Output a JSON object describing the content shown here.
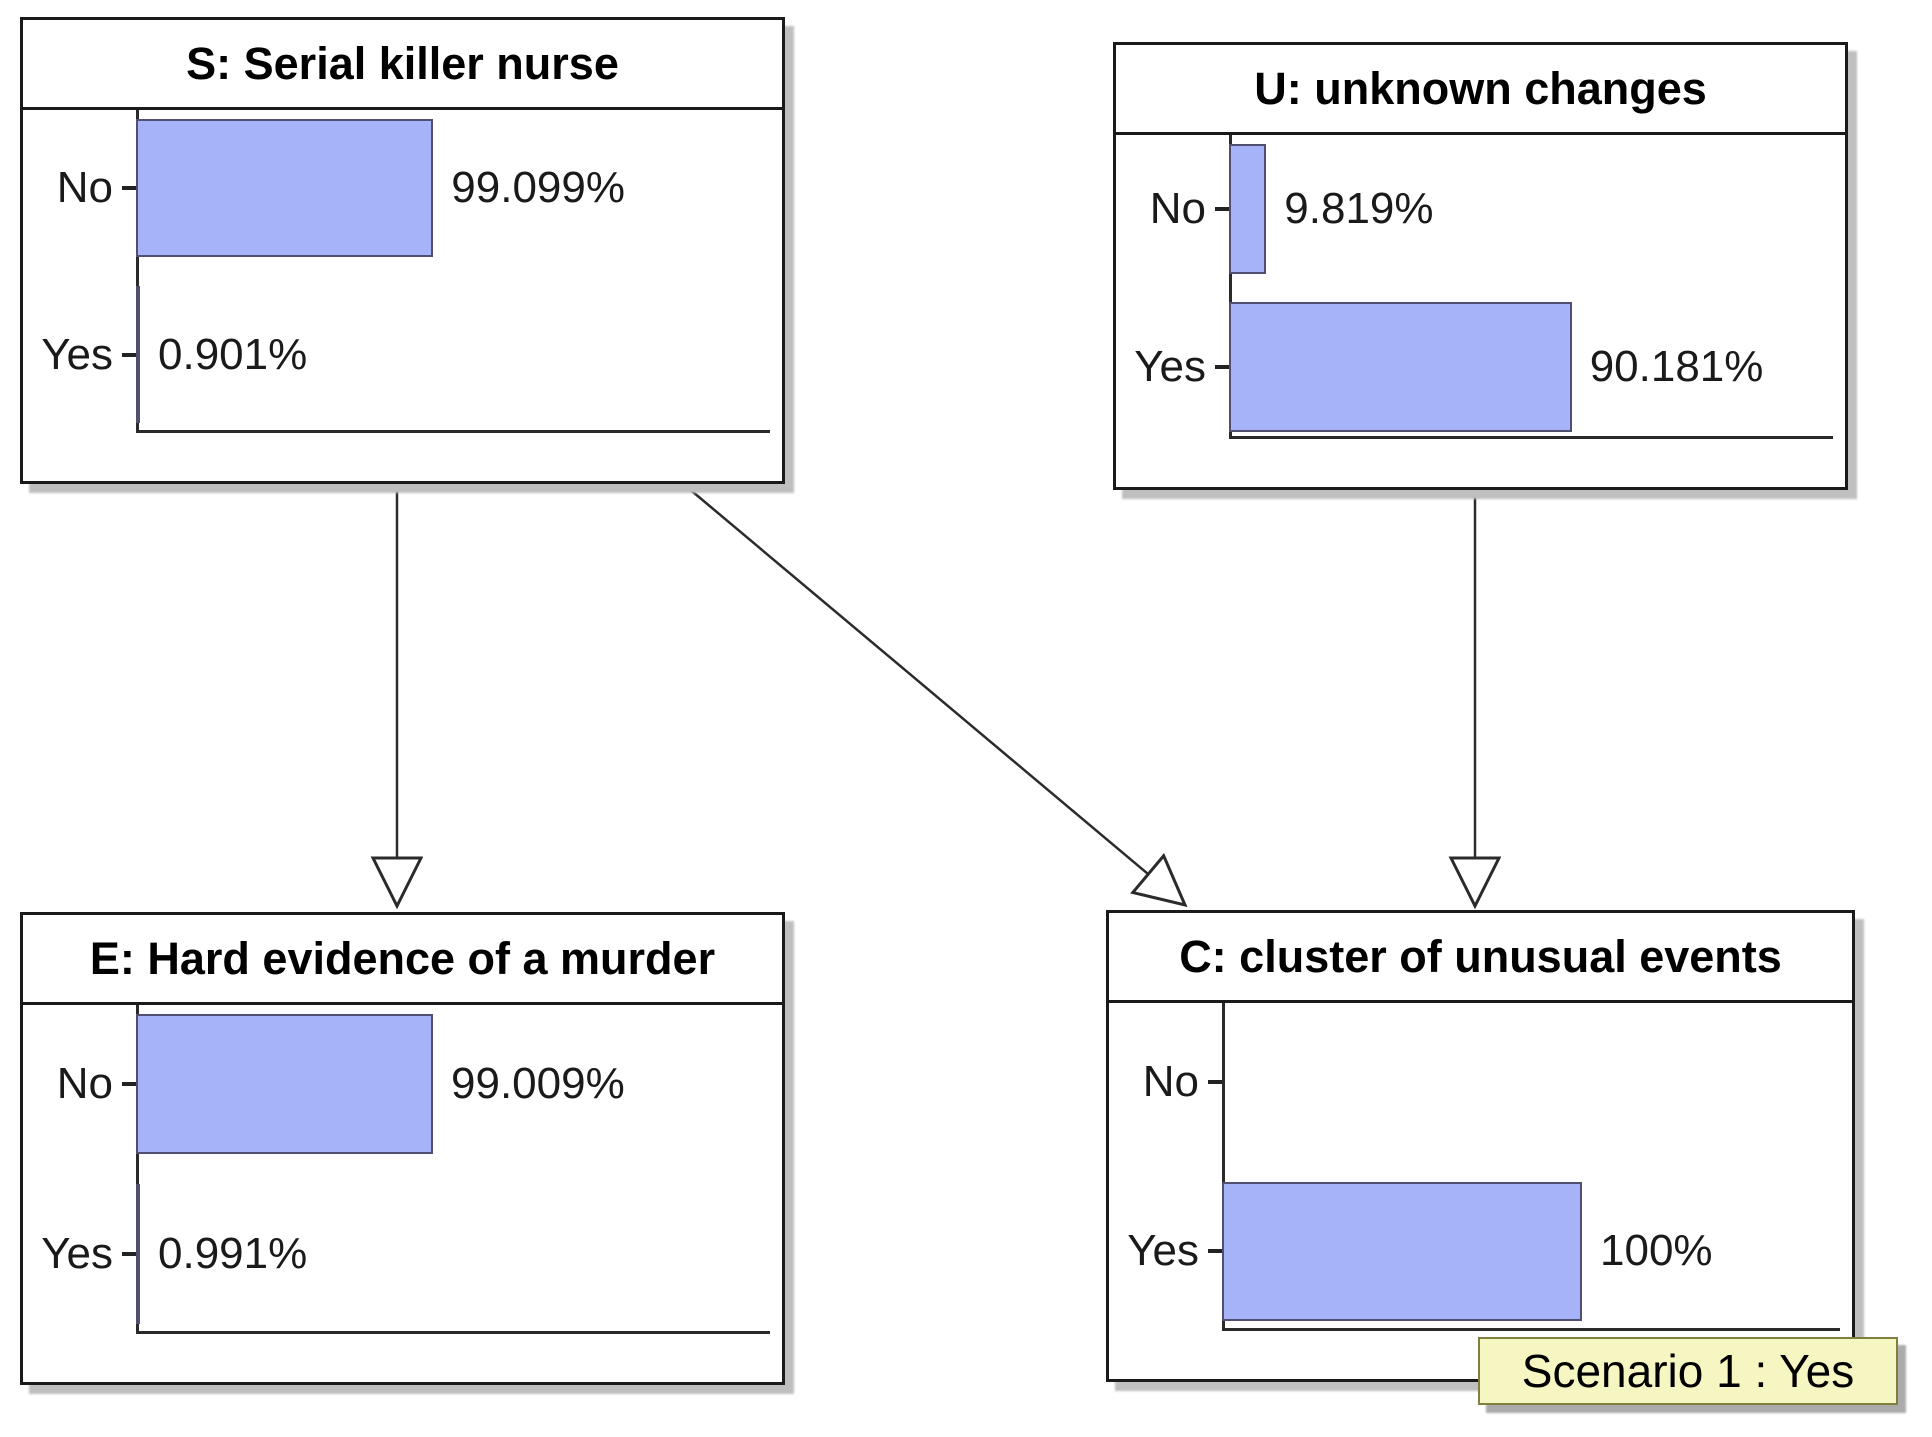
{
  "page": {
    "background": "#ffffff",
    "view": "Bayesian network risk monitor"
  },
  "network": {
    "nodes": [
      {
        "id": "S",
        "title": "S: Serial killer nurse",
        "states": [
          {
            "label": "No",
            "value": 99.099,
            "value_label": "99.099%"
          },
          {
            "label": "Yes",
            "value": 0.901,
            "value_label": "0.901%"
          }
        ]
      },
      {
        "id": "U",
        "title": "U: unknown changes",
        "states": [
          {
            "label": "No",
            "value": 9.819,
            "value_label": "9.819%"
          },
          {
            "label": "Yes",
            "value": 90.181,
            "value_label": "90.181%"
          }
        ]
      },
      {
        "id": "E",
        "title": "E: Hard evidence of a murder",
        "states": [
          {
            "label": "No",
            "value": 99.009,
            "value_label": "99.009%"
          },
          {
            "label": "Yes",
            "value": 0.991,
            "value_label": "0.991%"
          }
        ]
      },
      {
        "id": "C",
        "title": "C: cluster of unusual events",
        "states": [
          {
            "label": "No",
            "value": 0,
            "value_label": ""
          },
          {
            "label": "Yes",
            "value": 100,
            "value_label": "100%"
          }
        ]
      }
    ],
    "edges": [
      {
        "from": "S",
        "to": "E"
      },
      {
        "from": "S",
        "to": "C"
      },
      {
        "from": "U",
        "to": "C"
      }
    ]
  },
  "scenario": {
    "text": "Scenario 1 : Yes"
  },
  "colors": {
    "bar_fill": "#a7b3f8",
    "bar_border": "#4f4f70",
    "node_border": "#1a1a1a",
    "node_background": "#ffffff",
    "arrow": "#2b2b2b",
    "scenario_background": "#f6f6c2",
    "scenario_border": "#7f7f3f"
  }
}
